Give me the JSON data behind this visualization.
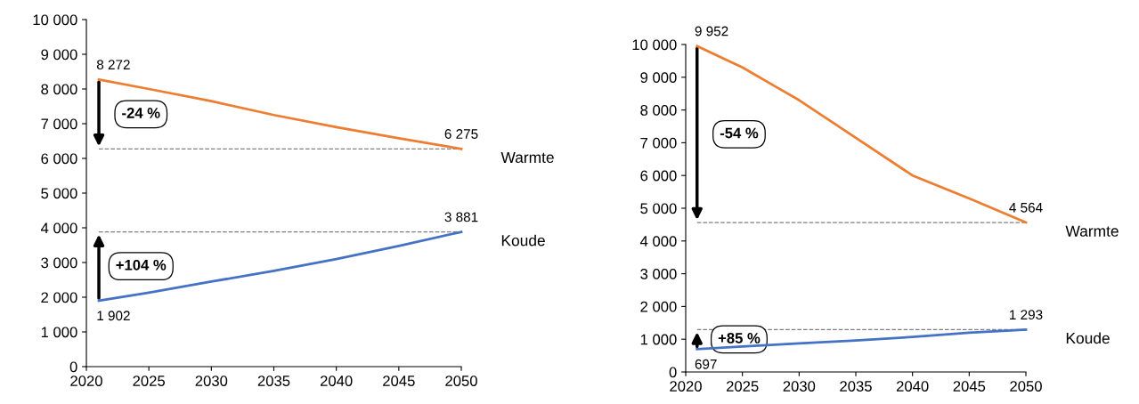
{
  "chart_data": [
    {
      "type": "line",
      "xlim": [
        2020,
        2050
      ],
      "xticks": [
        2020,
        2025,
        2030,
        2035,
        2040,
        2045,
        2050
      ],
      "ylim": [
        0,
        10000
      ],
      "yticks": [
        0,
        {
          "value": 1000,
          "label": "1 000"
        },
        {
          "value": 2000,
          "label": "2 000"
        },
        {
          "value": 3000,
          "label": "3 000"
        },
        {
          "value": 4000,
          "label": "4 000"
        },
        {
          "value": 5000,
          "label": "5 000"
        },
        {
          "value": 6000,
          "label": "6 000"
        },
        {
          "value": 7000,
          "label": "7 000"
        },
        {
          "value": 8000,
          "label": "8 000"
        },
        {
          "value": 9000,
          "label": "9 000"
        },
        {
          "value": 10000,
          "label": "10 000"
        }
      ],
      "grid": false,
      "marker": "none",
      "line_style": "solid",
      "series": [
        {
          "name": "Warmte",
          "color": "#ed7d31",
          "x": [
            2021,
            2025,
            2030,
            2035,
            2040,
            2045,
            2050
          ],
          "values": [
            8272,
            8000,
            7650,
            7250,
            6900,
            6580,
            6275
          ],
          "value_labels": [
            "8 272",
            null,
            null,
            null,
            null,
            null,
            "6 275"
          ]
        },
        {
          "name": "Koude",
          "color": "#4472c4",
          "x": [
            2021,
            2025,
            2030,
            2035,
            2040,
            2045,
            2050
          ],
          "values": [
            1902,
            2130,
            2450,
            2760,
            3100,
            3480,
            3881
          ],
          "value_labels": [
            "1 902",
            null,
            null,
            null,
            null,
            null,
            "3 881"
          ]
        }
      ],
      "ref_lines": [
        {
          "axis": "y",
          "value": 6275,
          "color": "#808080",
          "line_style": "dashed"
        },
        {
          "axis": "y",
          "value": 3881,
          "color": "#808080",
          "line_style": "dashed"
        }
      ],
      "annotations": [
        "-24 %",
        "+104 %"
      ]
    },
    {
      "type": "line",
      "xlim": [
        2020,
        2050
      ],
      "xticks": [
        2020,
        2025,
        2030,
        2035,
        2040,
        2045,
        2050
      ],
      "ylim": [
        0,
        10000
      ],
      "yticks": [
        0,
        {
          "value": 1000,
          "label": "1 000"
        },
        {
          "value": 2000,
          "label": "2 000"
        },
        {
          "value": 3000,
          "label": "3 000"
        },
        {
          "value": 4000,
          "label": "4 000"
        },
        {
          "value": 5000,
          "label": "5 000"
        },
        {
          "value": 6000,
          "label": "6 000"
        },
        {
          "value": 7000,
          "label": "7 000"
        },
        {
          "value": 8000,
          "label": "8 000"
        },
        {
          "value": 9000,
          "label": "9 000"
        },
        {
          "value": 10000,
          "label": "10 000"
        }
      ],
      "grid": false,
      "marker": "none",
      "line_style": "solid",
      "series": [
        {
          "name": "Warmte",
          "color": "#ed7d31",
          "x": [
            2021,
            2025,
            2028,
            2030,
            2035,
            2040,
            2045,
            2050
          ],
          "values": [
            9952,
            9300,
            8700,
            8300,
            7150,
            6000,
            5300,
            4564
          ],
          "value_labels": [
            "9 952",
            null,
            null,
            null,
            null,
            null,
            null,
            "4 564"
          ]
        },
        {
          "name": "Koude",
          "color": "#4472c4",
          "x": [
            2021,
            2025,
            2030,
            2035,
            2040,
            2045,
            2050
          ],
          "values": [
            697,
            780,
            870,
            960,
            1070,
            1200,
            1293
          ],
          "value_labels": [
            "697",
            null,
            null,
            null,
            null,
            null,
            "1 293"
          ]
        }
      ],
      "ref_lines": [
        {
          "axis": "y",
          "value": 4564,
          "color": "#808080",
          "line_style": "dashed"
        },
        {
          "axis": "y",
          "value": 1293,
          "color": "#808080",
          "line_style": "dashed"
        }
      ],
      "annotations": [
        "-54 %",
        "+85 %"
      ]
    }
  ]
}
